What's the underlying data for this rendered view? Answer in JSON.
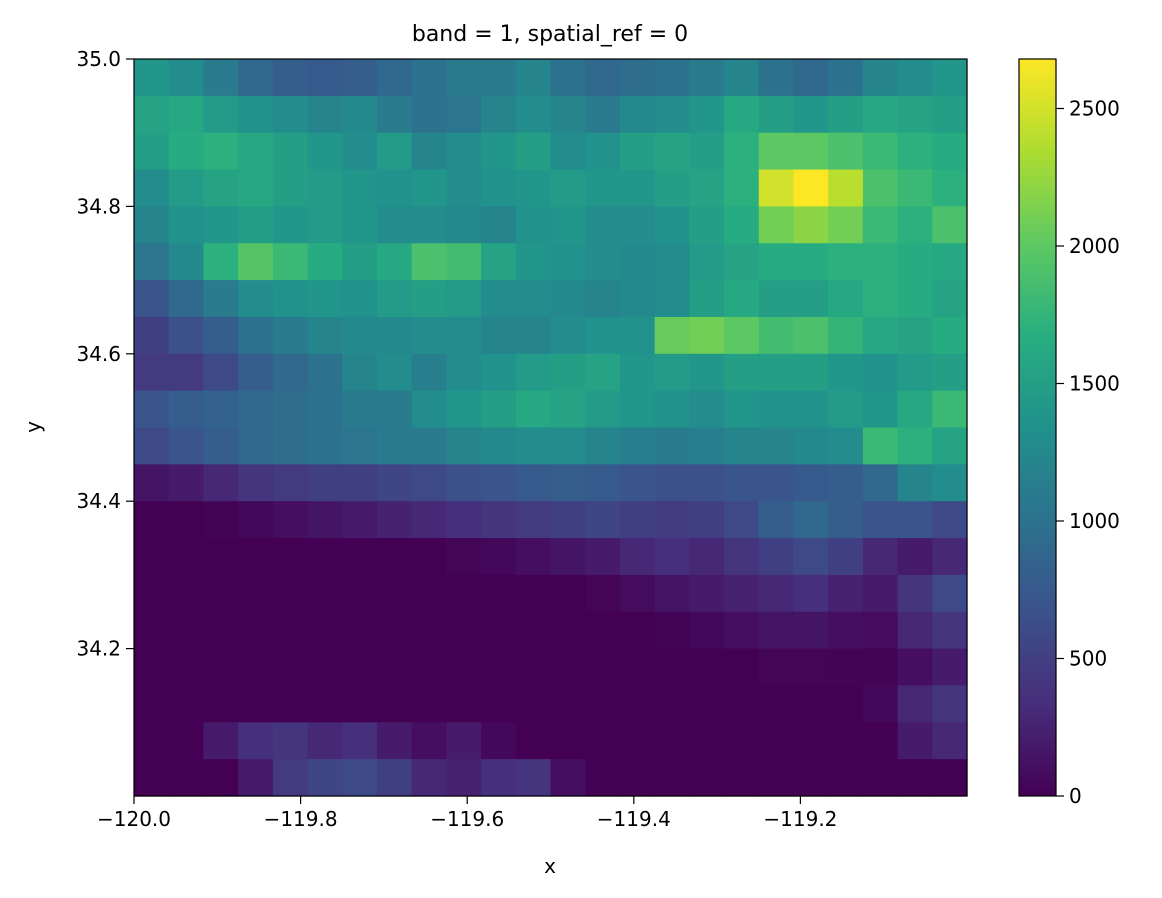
{
  "chart_data": {
    "type": "heatmap",
    "title": "band = 1, spatial_ref = 0",
    "xlabel": "x",
    "ylabel": "y",
    "xlim": [
      -120.0,
      -119.0
    ],
    "ylim": [
      34.0,
      35.0
    ],
    "x_ticks": [
      -120.0,
      -119.8,
      -119.6,
      -119.4,
      -119.2
    ],
    "x_tick_labels": [
      "−120.0",
      "−119.8",
      "−119.6",
      "−119.4",
      "−119.2"
    ],
    "y_ticks": [
      34.2,
      34.4,
      34.6,
      34.8,
      35.0
    ],
    "y_tick_labels": [
      "34.2",
      "34.4",
      "34.6",
      "34.8",
      "35.0"
    ],
    "colormap": "viridis",
    "colorbar": {
      "vmin": 0,
      "vmax": 2680,
      "ticks": [
        0,
        500,
        1000,
        1500,
        2000,
        2500
      ],
      "tick_labels": [
        "0",
        "500",
        "1000",
        "1500",
        "2000",
        "2500"
      ]
    },
    "grid": false,
    "grid_size": {
      "rows": 20,
      "cols": 24
    },
    "rows_order": "north_to_south",
    "values": [
      [
        1400,
        1300,
        1100,
        900,
        800,
        750,
        800,
        900,
        1000,
        1100,
        1100,
        1200,
        1000,
        900,
        950,
        1000,
        1100,
        1200,
        1000,
        900,
        1000,
        1200,
        1300,
        1400
      ],
      [
        1550,
        1600,
        1450,
        1350,
        1300,
        1200,
        1250,
        1100,
        1000,
        1050,
        1200,
        1300,
        1200,
        1100,
        1250,
        1300,
        1400,
        1600,
        1500,
        1400,
        1500,
        1600,
        1550,
        1500
      ],
      [
        1500,
        1650,
        1700,
        1600,
        1500,
        1400,
        1300,
        1450,
        1200,
        1300,
        1400,
        1500,
        1300,
        1350,
        1500,
        1550,
        1500,
        1700,
        2000,
        2000,
        1900,
        1800,
        1700,
        1650
      ],
      [
        1300,
        1450,
        1550,
        1600,
        1500,
        1450,
        1400,
        1350,
        1400,
        1300,
        1350,
        1400,
        1450,
        1400,
        1400,
        1500,
        1550,
        1700,
        2500,
        2680,
        2400,
        1900,
        1800,
        1700
      ],
      [
        1200,
        1350,
        1400,
        1500,
        1400,
        1450,
        1400,
        1300,
        1300,
        1250,
        1200,
        1350,
        1400,
        1300,
        1300,
        1350,
        1500,
        1650,
        2100,
        2200,
        2100,
        1800,
        1700,
        1900
      ],
      [
        1050,
        1250,
        1700,
        1950,
        1800,
        1650,
        1500,
        1600,
        1900,
        1850,
        1550,
        1400,
        1350,
        1300,
        1250,
        1300,
        1450,
        1550,
        1650,
        1650,
        1700,
        1700,
        1650,
        1600
      ],
      [
        700,
        900,
        1100,
        1300,
        1350,
        1400,
        1350,
        1450,
        1500,
        1450,
        1300,
        1300,
        1250,
        1200,
        1250,
        1300,
        1500,
        1600,
        1500,
        1500,
        1600,
        1700,
        1650,
        1550
      ],
      [
        500,
        650,
        800,
        1000,
        1100,
        1200,
        1250,
        1250,
        1300,
        1300,
        1200,
        1200,
        1300,
        1350,
        1350,
        2050,
        2100,
        2000,
        1850,
        1900,
        1750,
        1600,
        1550,
        1650
      ],
      [
        450,
        450,
        600,
        800,
        900,
        1000,
        1200,
        1300,
        1150,
        1300,
        1350,
        1450,
        1500,
        1550,
        1400,
        1450,
        1400,
        1500,
        1500,
        1500,
        1400,
        1350,
        1450,
        1500
      ],
      [
        700,
        800,
        850,
        900,
        950,
        1000,
        1100,
        1100,
        1300,
        1400,
        1500,
        1600,
        1550,
        1450,
        1400,
        1350,
        1300,
        1400,
        1350,
        1350,
        1450,
        1400,
        1600,
        1800
      ],
      [
        600,
        700,
        800,
        900,
        950,
        1000,
        1050,
        1100,
        1100,
        1200,
        1250,
        1300,
        1300,
        1200,
        1150,
        1100,
        1150,
        1200,
        1200,
        1250,
        1300,
        1800,
        1700,
        1550
      ],
      [
        150,
        200,
        300,
        400,
        450,
        500,
        500,
        550,
        600,
        650,
        700,
        750,
        800,
        750,
        700,
        650,
        650,
        700,
        700,
        750,
        800,
        900,
        1200,
        1300
      ],
      [
        0,
        0,
        20,
        50,
        100,
        150,
        200,
        250,
        300,
        350,
        400,
        450,
        500,
        550,
        500,
        450,
        500,
        600,
        800,
        900,
        800,
        700,
        700,
        600
      ],
      [
        0,
        0,
        0,
        0,
        0,
        0,
        0,
        0,
        0,
        30,
        50,
        100,
        150,
        200,
        300,
        350,
        300,
        400,
        500,
        600,
        500,
        300,
        200,
        300
      ],
      [
        0,
        0,
        0,
        0,
        0,
        0,
        0,
        0,
        0,
        0,
        0,
        0,
        0,
        30,
        80,
        150,
        200,
        250,
        300,
        350,
        250,
        200,
        400,
        600
      ],
      [
        0,
        0,
        0,
        0,
        0,
        0,
        0,
        0,
        0,
        0,
        0,
        0,
        0,
        0,
        0,
        20,
        50,
        100,
        150,
        150,
        100,
        80,
        300,
        400
      ],
      [
        0,
        0,
        0,
        0,
        0,
        0,
        0,
        0,
        0,
        0,
        0,
        0,
        0,
        0,
        0,
        0,
        0,
        0,
        30,
        30,
        20,
        20,
        100,
        200
      ],
      [
        0,
        0,
        0,
        0,
        0,
        0,
        0,
        0,
        0,
        0,
        0,
        0,
        0,
        0,
        0,
        0,
        0,
        0,
        0,
        0,
        0,
        50,
        300,
        400
      ],
      [
        0,
        0,
        200,
        350,
        400,
        300,
        350,
        200,
        100,
        200,
        50,
        0,
        0,
        0,
        0,
        0,
        0,
        0,
        0,
        0,
        0,
        0,
        200,
        300
      ],
      [
        0,
        0,
        0,
        200,
        450,
        550,
        600,
        500,
        300,
        250,
        350,
        400,
        100,
        0,
        0,
        0,
        0,
        0,
        0,
        0,
        0,
        0,
        0,
        0
      ]
    ]
  }
}
